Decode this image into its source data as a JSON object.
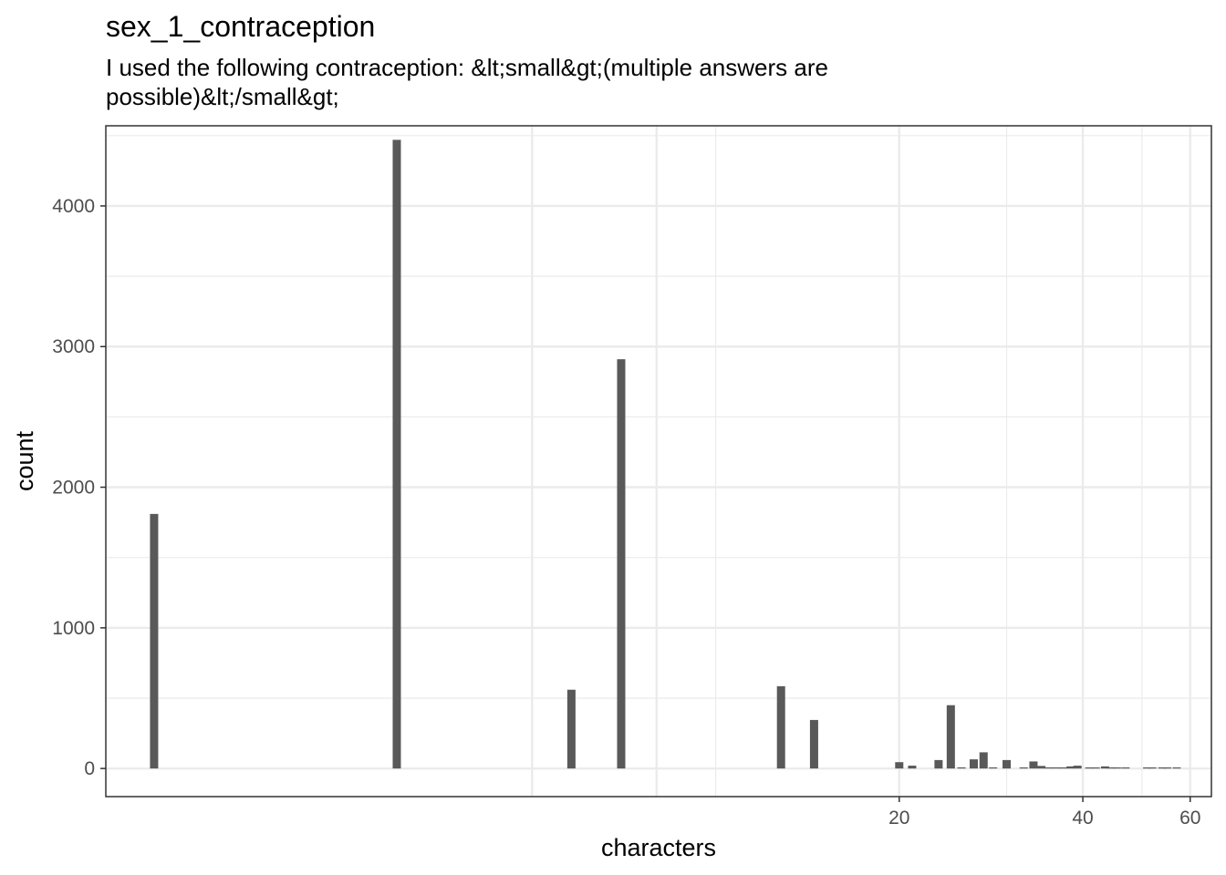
{
  "chart_data": {
    "type": "bar",
    "title": "sex_1_contraception",
    "subtitle": "I used the following contraception: &lt;small&gt;(multiple answers are possible)&lt;/small&gt;",
    "xlabel": "characters",
    "ylabel": "count",
    "x_scale": "log10",
    "xlim": [
      1.0,
      65.0
    ],
    "ylim": [
      -200,
      4570
    ],
    "x_ticks": [
      20,
      40,
      60
    ],
    "x_minor_ticks": [
      10,
      30,
      50
    ],
    "x_unlabeled_gridlines": [
      5,
      8
    ],
    "y_ticks": [
      0,
      1000,
      2000,
      3000,
      4000
    ],
    "grid": true,
    "bar_color": "#595959",
    "x": [
      1.2,
      3.0,
      5.8,
      7.0,
      12.8,
      14.5,
      20.0,
      21.0,
      23.2,
      24.3,
      25.3,
      26.5,
      27.5,
      28.5,
      30.0,
      32.0,
      33.2,
      34.2,
      35.2,
      36.2,
      37.2,
      38.2,
      39.2,
      41.0,
      42.0,
      43.5,
      44.5,
      45.5,
      47.0,
      51.0,
      52.0,
      54.0,
      55.0,
      57.0
    ],
    "values": [
      1810,
      4470,
      560,
      2910,
      585,
      345,
      45,
      20,
      60,
      450,
      8,
      65,
      115,
      8,
      60,
      5,
      50,
      18,
      8,
      6,
      8,
      15,
      20,
      6,
      5,
      15,
      8,
      5,
      6,
      5,
      5,
      5,
      5,
      5
    ]
  }
}
